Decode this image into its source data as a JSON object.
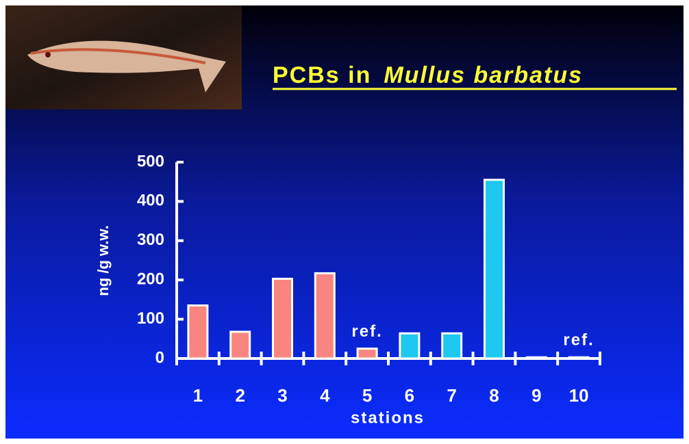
{
  "chart_data": {
    "type": "bar",
    "title": "PCBs in",
    "title_species": "Mullus barbatus",
    "categories": [
      "1",
      "2",
      "3",
      "4",
      "5",
      "6",
      "7",
      "8",
      "9",
      "10"
    ],
    "values": [
      135,
      68,
      203,
      217,
      25,
      64,
      64,
      455,
      3,
      3
    ],
    "colors": [
      "#f8857f",
      "#f8857f",
      "#f8857f",
      "#f8857f",
      "#f8857f",
      "#1ec8f0",
      "#1ec8f0",
      "#1ec8f0",
      "#1ec8f0",
      "#1ec8f0"
    ],
    "ylim": [
      0,
      500
    ],
    "yticks": [
      0,
      100,
      200,
      300,
      400,
      500
    ],
    "y_label": "ng /g w.w.",
    "x_label": "stations",
    "annotations": [
      {
        "text": "ref.",
        "category": "5"
      },
      {
        "text": "ref.",
        "category": "10"
      }
    ]
  }
}
